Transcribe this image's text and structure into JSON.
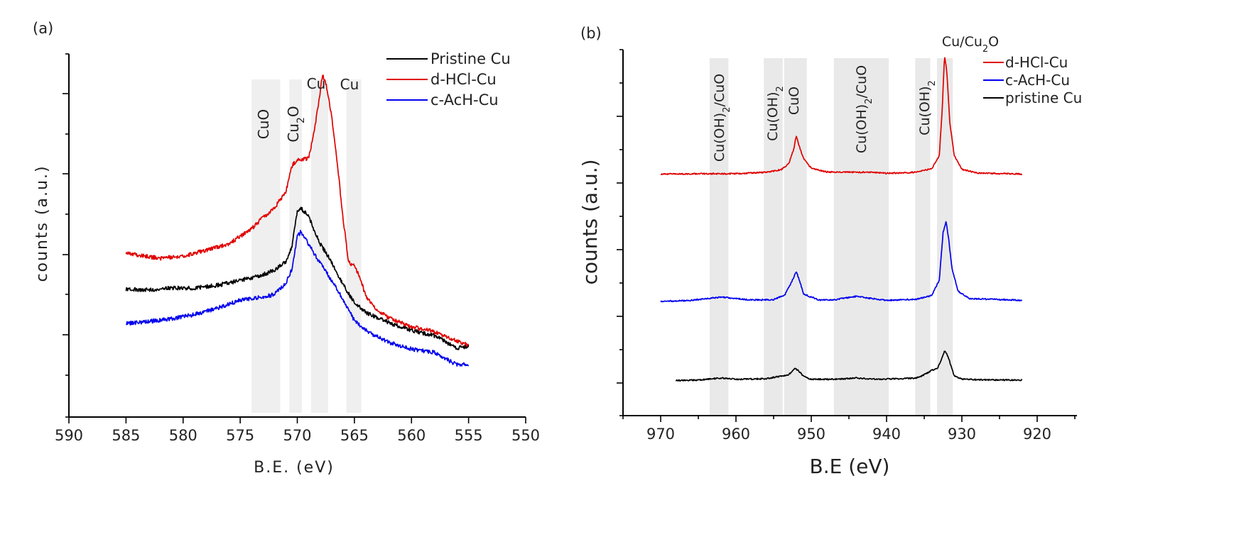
{
  "chart_data": [
    {
      "panel_label": "(a)",
      "type": "line",
      "xlabel": "B.E. (eV)",
      "ylabel": "counts (a.u.)",
      "xlim": [
        590,
        550
      ],
      "x_reversed": true,
      "xticks": [
        590,
        585,
        580,
        575,
        570,
        565,
        560,
        555,
        550
      ],
      "y_units": "arbitrary",
      "ylim": [
        0,
        100
      ],
      "legend_position": "top-right",
      "series": [
        {
          "name": "Pristine Cu",
          "color": "#000000",
          "points": [
            [
              585,
              35.2
            ],
            [
              583,
              35.0
            ],
            [
              581,
              35.6
            ],
            [
              579,
              35.5
            ],
            [
              577,
              36.3
            ],
            [
              575,
              37.6
            ],
            [
              573,
              39.2
            ],
            [
              572,
              40.5
            ],
            [
              571,
              42.8
            ],
            [
              570.5,
              46.5
            ],
            [
              570,
              56.5
            ],
            [
              569.7,
              57.5
            ],
            [
              569,
              55.5
            ],
            [
              568.5,
              51.0
            ],
            [
              568,
              47.8
            ],
            [
              567,
              42.7
            ],
            [
              566,
              36.5
            ],
            [
              565,
              31.5
            ],
            [
              564,
              28.8
            ],
            [
              563,
              27.3
            ],
            [
              562,
              26.0
            ],
            [
              560,
              23.9
            ],
            [
              558,
              22.4
            ],
            [
              556,
              19.0
            ],
            [
              555,
              19.6
            ]
          ]
        },
        {
          "name": "d-HCl-Cu",
          "color": "#e00000",
          "points": [
            [
              585,
              45.3
            ],
            [
              584,
              44.6
            ],
            [
              582,
              43.7
            ],
            [
              580,
              44.3
            ],
            [
              578,
              45.9
            ],
            [
              576,
              47.7
            ],
            [
              575,
              49.8
            ],
            [
              574,
              51.8
            ],
            [
              573,
              55.0
            ],
            [
              572,
              57.6
            ],
            [
              571,
              62.0
            ],
            [
              570.5,
              69.0
            ],
            [
              570,
              71.0
            ],
            [
              569,
              71.2
            ],
            [
              568.5,
              79.0
            ],
            [
              568,
              89.5
            ],
            [
              567.8,
              94.0
            ],
            [
              567.5,
              92.0
            ],
            [
              567,
              83.0
            ],
            [
              566.5,
              70.0
            ],
            [
              566,
              55.0
            ],
            [
              565.5,
              42.5
            ],
            [
              565,
              41.7
            ],
            [
              564.5,
              38.3
            ],
            [
              564,
              33.2
            ],
            [
              563,
              29.5
            ],
            [
              562,
              27.3
            ],
            [
              560,
              24.9
            ],
            [
              558,
              23.5
            ],
            [
              556,
              21.0
            ],
            [
              555,
              19.7
            ]
          ]
        },
        {
          "name": "c-AcH-Cu",
          "color": "#0000ee",
          "points": [
            [
              585,
              25.8
            ],
            [
              583,
              26.3
            ],
            [
              581,
              27.1
            ],
            [
              579,
              28.2
            ],
            [
              577,
              30.0
            ],
            [
              575,
              32.2
            ],
            [
              573,
              33.0
            ],
            [
              572,
              33.8
            ],
            [
              571,
              36.8
            ],
            [
              570.5,
              40.5
            ],
            [
              570,
              49.5
            ],
            [
              569.7,
              51.0
            ],
            [
              569,
              47.5
            ],
            [
              568,
              42.3
            ],
            [
              567,
              37.7
            ],
            [
              566,
              32.3
            ],
            [
              565,
              26.5
            ],
            [
              564,
              23.9
            ],
            [
              563,
              22.1
            ],
            [
              562,
              20.6
            ],
            [
              560,
              18.7
            ],
            [
              558,
              17.8
            ],
            [
              556,
              14.3
            ],
            [
              555,
              14.6
            ]
          ]
        }
      ],
      "bands": [
        {
          "label": "CuO",
          "x": [
            574,
            571.5
          ]
        },
        {
          "label": "Cu2O",
          "x": [
            570.7,
            569.6
          ]
        },
        {
          "label": "Cu",
          "x": [
            568.8,
            567.3
          ]
        },
        {
          "label": "Cu",
          "x": [
            565.7,
            564.4
          ]
        }
      ]
    },
    {
      "panel_label": "(b)",
      "type": "line",
      "xlabel": "B.E (eV)",
      "ylabel": "counts (a.u.)",
      "xlim": [
        975,
        915
      ],
      "x_reversed": true,
      "xticks": [
        970,
        960,
        950,
        940,
        930,
        920
      ],
      "y_units": "arbitrary",
      "ylim": [
        0,
        100
      ],
      "legend_position": "top-right",
      "series": [
        {
          "name": "d-HCl-Cu",
          "color": "#e00000",
          "points": [
            [
              970,
              66.0
            ],
            [
              965,
              66.1
            ],
            [
              960,
              66.1
            ],
            [
              956,
              66.5
            ],
            [
              954,
              67.2
            ],
            [
              953,
              68.8
            ],
            [
              952.3,
              73.0
            ],
            [
              952,
              76.5
            ],
            [
              951.5,
              73.0
            ],
            [
              951,
              70.2
            ],
            [
              950,
              67.6
            ],
            [
              948,
              66.6
            ],
            [
              944,
              66.5
            ],
            [
              942,
              66.5
            ],
            [
              940,
              66.2
            ],
            [
              936,
              66.5
            ],
            [
              934,
              67.5
            ],
            [
              933,
              71.0
            ],
            [
              932.6,
              84.0
            ],
            [
              932.3,
              98.5
            ],
            [
              932,
              94.0
            ],
            [
              931.6,
              80.0
            ],
            [
              931,
              71.0
            ],
            [
              930,
              67.3
            ],
            [
              928,
              66.3
            ],
            [
              922,
              66.0
            ]
          ]
        },
        {
          "name": "c-AcH-Cu",
          "color": "#0000ee",
          "points": [
            [
              970,
              31.2
            ],
            [
              966,
              31.5
            ],
            [
              962,
              32.4
            ],
            [
              958,
              31.6
            ],
            [
              955,
              31.7
            ],
            [
              953.5,
              33.0
            ],
            [
              952.5,
              37.0
            ],
            [
              952,
              39.5
            ],
            [
              951.5,
              36.5
            ],
            [
              951,
              33.2
            ],
            [
              949,
              31.6
            ],
            [
              947,
              31.6
            ],
            [
              946,
              32.0
            ],
            [
              944,
              32.6
            ],
            [
              942,
              32.0
            ],
            [
              940,
              31.5
            ],
            [
              936,
              31.8
            ],
            [
              934,
              32.8
            ],
            [
              933,
              37.0
            ],
            [
              932.5,
              50.0
            ],
            [
              932.1,
              53.0
            ],
            [
              931.8,
              49.0
            ],
            [
              931.3,
              40.0
            ],
            [
              930.5,
              34.0
            ],
            [
              929,
              32.0
            ],
            [
              922,
              31.5
            ]
          ]
        },
        {
          "name": "pristine Cu",
          "color": "#000000",
          "points": [
            [
              968,
              9.6
            ],
            [
              965,
              9.7
            ],
            [
              962,
              10.3
            ],
            [
              960,
              9.9
            ],
            [
              956,
              10.1
            ],
            [
              954,
              10.8
            ],
            [
              953,
              11.2
            ],
            [
              952.2,
              12.8
            ],
            [
              951.8,
              12.5
            ],
            [
              951,
              10.7
            ],
            [
              950,
              9.9
            ],
            [
              946,
              10.0
            ],
            [
              944,
              10.3
            ],
            [
              942,
              10.0
            ],
            [
              940,
              10.0
            ],
            [
              938,
              10.1
            ],
            [
              936,
              10.3
            ],
            [
              935,
              11.2
            ],
            [
              934,
              12.4
            ],
            [
              933.2,
              13.0
            ],
            [
              932.8,
              15.0
            ],
            [
              932.3,
              17.7
            ],
            [
              932,
              17.0
            ],
            [
              931.5,
              14.0
            ],
            [
              931,
              10.8
            ],
            [
              930,
              10.0
            ],
            [
              928,
              9.8
            ],
            [
              922,
              9.7
            ]
          ]
        }
      ],
      "bands": [
        {
          "label": "Cu(OH)2/CuO",
          "x": [
            963.5,
            961
          ]
        },
        {
          "label": "Cu(OH)2",
          "x": [
            956.3,
            953.8
          ]
        },
        {
          "label": "CuO",
          "x": [
            953.6,
            950.6
          ]
        },
        {
          "label": "Cu(OH)2/CuO",
          "x": [
            947,
            939.7
          ]
        },
        {
          "label": "Cu(OH)2",
          "x": [
            936.2,
            934.2
          ]
        },
        {
          "label": "Cu/Cu2O",
          "x": [
            933.3,
            931.2
          ]
        }
      ]
    }
  ]
}
